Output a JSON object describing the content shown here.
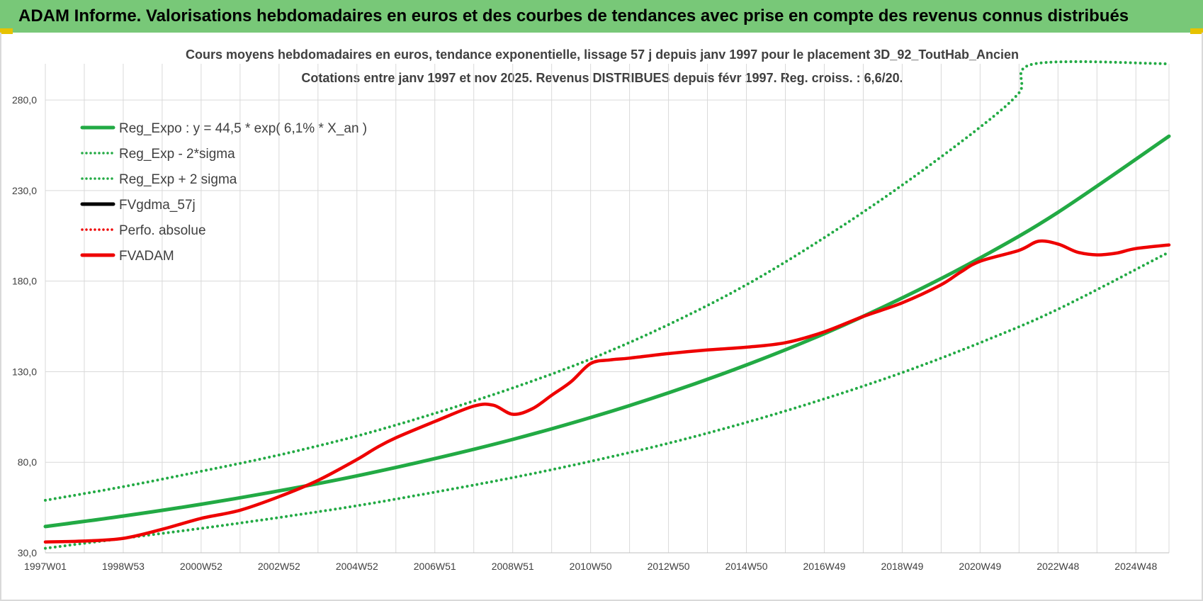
{
  "header": {
    "title": "ADAM Informe. Valorisations hebdomadaires en euros et des courbes de tendances avec prise en compte des revenus connus distribués"
  },
  "chart_data": {
    "type": "line",
    "title": "Cours moyens hebdomadaires en euros, tendance exponentielle, lissage 57 j depuis janv 1997 pour le placement 3D_92_ToutHab_Ancien",
    "subtitle": "Cotations entre janv 1997 et nov 2025. Revenus DISTRIBUES depuis févr 1997. Reg. croiss. : 6,6/20.",
    "xlabel": "",
    "ylabel": "",
    "ylim": [
      30,
      300
    ],
    "yticks": [
      "30,0",
      "80,0",
      "130,0",
      "180,0",
      "230,0",
      "280,0"
    ],
    "x_range": [
      1997.0,
      2025.85
    ],
    "xticks": [
      {
        "label": "1997W01",
        "x": 1997.0
      },
      {
        "label": "1998W53",
        "x": 1999.0
      },
      {
        "label": "2000W52",
        "x": 2001.0
      },
      {
        "label": "2002W52",
        "x": 2003.0
      },
      {
        "label": "2004W52",
        "x": 2005.0
      },
      {
        "label": "2006W51",
        "x": 2007.0
      },
      {
        "label": "2008W51",
        "x": 2009.0
      },
      {
        "label": "2010W50",
        "x": 2011.0
      },
      {
        "label": "2012W50",
        "x": 2013.0
      },
      {
        "label": "2014W50",
        "x": 2015.0
      },
      {
        "label": "2016W49",
        "x": 2017.0
      },
      {
        "label": "2018W49",
        "x": 2019.0
      },
      {
        "label": "2020W49",
        "x": 2021.0
      },
      {
        "label": "2022W48",
        "x": 2023.0
      },
      {
        "label": "2024W48",
        "x": 2025.0
      }
    ],
    "grid": true,
    "legend_position": "top-left",
    "series": [
      {
        "name": "Reg_Expo : y = 44,5 * exp( 6,1% *  X_an )",
        "color": "#22aa44",
        "style": "solid",
        "x": [
          1997.0,
          1999.0,
          2001.0,
          2003.0,
          2005.0,
          2007.0,
          2009.0,
          2011.0,
          2013.0,
          2015.0,
          2017.0,
          2019.0,
          2021.0,
          2023.0,
          2025.85
        ],
        "values": [
          44.5,
          50.3,
          56.8,
          64.2,
          72.5,
          82.0,
          92.6,
          104.7,
          118.3,
          133.7,
          151.0,
          170.7,
          192.8,
          218.0,
          260.0
        ]
      },
      {
        "name": "Reg_Exp - 2*sigma",
        "color": "#22aa44",
        "style": "dotted",
        "x": [
          1997.0,
          1999.0,
          2001.0,
          2003.0,
          2005.0,
          2007.0,
          2009.0,
          2011.0,
          2013.0,
          2015.0,
          2017.0,
          2019.0,
          2021.0,
          2023.0,
          2025.85
        ],
        "values": [
          32.5,
          38.0,
          43.5,
          49.5,
          56.0,
          63.5,
          71.5,
          80.5,
          90.5,
          102.0,
          115.0,
          129.5,
          146.0,
          164.5,
          196.0
        ]
      },
      {
        "name": "Reg_Exp + 2 sigma",
        "color": "#22aa44",
        "style": "dotted",
        "x": [
          1997.0,
          1999.0,
          2001.0,
          2003.0,
          2005.0,
          2007.0,
          2009.0,
          2011.0,
          2013.0,
          2015.0,
          2017.0,
          2019.0,
          2021.0,
          2022.0,
          2022.4,
          2025.85
        ],
        "values": [
          59.0,
          66.5,
          75.0,
          84.0,
          94.5,
          107.0,
          121.0,
          137.0,
          156.0,
          178.0,
          204.0,
          233.0,
          265.0,
          284.0,
          300.0,
          300.0
        ]
      },
      {
        "name": "FVgdma_57j",
        "color": "#000000",
        "style": "solid",
        "x": [],
        "values": []
      },
      {
        "name": "Perfo. absolue",
        "color": "#ee0000",
        "style": "dotted",
        "x": [],
        "values": []
      },
      {
        "name": "FVADAM",
        "color": "#ee0000",
        "style": "solid",
        "x": [
          1997.0,
          1998.0,
          1999.0,
          2000.0,
          2001.0,
          2002.0,
          2003.0,
          2004.0,
          2005.0,
          2005.5,
          2006.0,
          2007.0,
          2008.0,
          2008.5,
          2009.0,
          2009.5,
          2010.0,
          2010.5,
          2011.0,
          2011.5,
          2012.0,
          2013.0,
          2014.0,
          2015.0,
          2016.0,
          2017.0,
          2018.0,
          2019.0,
          2020.0,
          2020.5,
          2021.0,
          2022.0,
          2022.5,
          2023.0,
          2023.5,
          2024.0,
          2024.5,
          2025.0,
          2025.85
        ],
        "values": [
          36.0,
          36.5,
          38.0,
          43.0,
          49.0,
          53.5,
          61.0,
          70.0,
          81.5,
          88.0,
          93.5,
          102.5,
          111.0,
          111.5,
          106.5,
          109.5,
          117.0,
          124.5,
          134.5,
          136.5,
          137.5,
          140.0,
          142.0,
          143.5,
          146.0,
          152.0,
          160.5,
          168.0,
          178.0,
          185.0,
          191.0,
          197.0,
          202.0,
          200.5,
          196.0,
          194.5,
          195.5,
          198.0,
          200.0
        ]
      }
    ]
  }
}
